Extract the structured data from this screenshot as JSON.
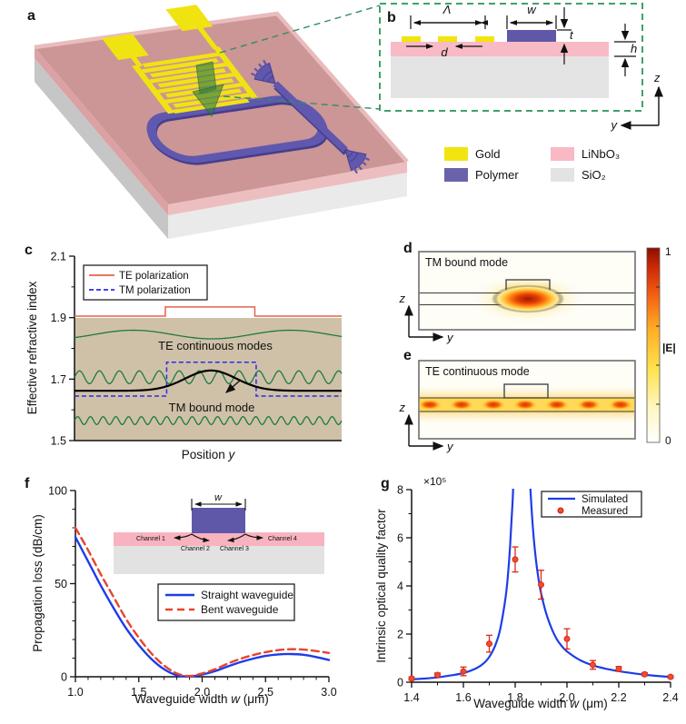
{
  "figure": {
    "panels": {
      "a": "a",
      "b": "b",
      "c": "c",
      "d": "d",
      "e": "e",
      "f": "f",
      "g": "g"
    },
    "materials": [
      {
        "name": "Gold",
        "color": "#f2e40e"
      },
      {
        "name": "Polymer",
        "color": "#6a63ab"
      },
      {
        "name": "LiNbO₃",
        "color": "#f8b9c4"
      },
      {
        "name": "SiO₂",
        "color": "#e3e3e3"
      }
    ],
    "panel_b": {
      "lambda": "Λ",
      "d": "d",
      "w": "w",
      "t": "t",
      "h": "h",
      "z": "z",
      "y": "y"
    },
    "panel_d": {
      "title": "TM bound mode",
      "z": "z",
      "y": "y"
    },
    "panel_e": {
      "title": "TE continuous mode",
      "z": "z",
      "y": "y"
    },
    "colorbar": {
      "max": "1",
      "min": "0",
      "label": "|E|"
    }
  },
  "chart_data": [
    {
      "id": "c",
      "type": "line",
      "ylabel": "Effective refractive index",
      "xlabel_main": "Position ",
      "xlabel_var": "y",
      "xlim": [
        0,
        1
      ],
      "ylim": [
        1.5,
        2.1
      ],
      "yticks": [
        "1.5",
        "1.7",
        "1.9",
        "2.1"
      ],
      "grid": false,
      "shaded_band": {
        "from": 1.9,
        "to": 1.5,
        "color": "#cfc1a8"
      },
      "legend": [
        {
          "label": "TE polarization",
          "color": "#e8604c",
          "style": "solid"
        },
        {
          "label": "TM polarization",
          "color": "#2b2bf0",
          "style": "dashed"
        }
      ],
      "series": [
        {
          "name": "TM polarization",
          "kind": "step",
          "color": "#2b2bf0",
          "width": 1.5,
          "dash": "5,3",
          "base": 1.645,
          "top": 1.755,
          "x1": 0.345,
          "x2": 0.68
        },
        {
          "name": "TE continuous mode upper",
          "kind": "sine",
          "color": "#1e7a40",
          "width": 1.3,
          "center": 1.845,
          "amp": 0.014,
          "periods": 1.7,
          "phase": -0.78
        },
        {
          "name": "TE continuous mode middle",
          "kind": "sine",
          "color": "#1e7a40",
          "width": 1.3,
          "center": 1.706,
          "amp": 0.021,
          "periods": 13.4,
          "phase": 0
        },
        {
          "name": "TE continuous mode lower",
          "kind": "sine",
          "color": "#1e7a40",
          "width": 1.3,
          "center": 1.565,
          "amp": 0.013,
          "periods": 21,
          "phase": 0
        },
        {
          "name": "TM bound mode",
          "kind": "gaussian",
          "color": "#000000",
          "width": 2.2,
          "base": 1.662,
          "peak": 1.728,
          "center": 0.51,
          "sigma": 0.095
        },
        {
          "name": "TE polarization",
          "kind": "step",
          "color": "#e8604c",
          "width": 1.5,
          "dash": null,
          "base": 1.905,
          "top": 1.935,
          "x1": 0.34,
          "x2": 0.675
        }
      ],
      "annotations": [
        {
          "text": "TE continuous modes",
          "color": "#1e7a40"
        },
        {
          "text": "TM bound mode",
          "color": "#000000"
        }
      ]
    },
    {
      "id": "f",
      "type": "line",
      "ylabel": "Propagation loss (dB/cm)",
      "xlabel_main": "Waveguide width ",
      "xlabel_var": "w",
      "xlabel_post": " (μm)",
      "xlim": [
        1.0,
        3.0
      ],
      "ylim": [
        0,
        100
      ],
      "xticks": [
        "1.0",
        "1.5",
        "2.0",
        "2.5",
        "3.0"
      ],
      "yticks": [
        "0",
        "50",
        "100"
      ],
      "grid": false,
      "legend": [
        {
          "label": "Straight waveguide",
          "color": "#1d3de8",
          "style": "solid"
        },
        {
          "label": "Bent waveguide",
          "color": "#e8432c",
          "style": "dashed"
        }
      ],
      "series": [
        {
          "name": "Straight waveguide",
          "color": "#1d3de8",
          "width": 2.4,
          "dash": null,
          "x": [
            1.0,
            1.1,
            1.2,
            1.3,
            1.4,
            1.5,
            1.6,
            1.7,
            1.8,
            1.9,
            2.0,
            2.1,
            2.2,
            2.3,
            2.4,
            2.5,
            2.6,
            2.7,
            2.8,
            2.9,
            3.0
          ],
          "y": [
            75,
            62,
            49,
            37,
            26,
            17,
            9.5,
            4,
            0.8,
            0.2,
            1.2,
            3,
            5.5,
            7.8,
            9.7,
            11.2,
            12,
            12.2,
            11.8,
            10.6,
            9
          ]
        },
        {
          "name": "Bent waveguide",
          "color": "#e8432c",
          "width": 2.4,
          "dash": "8,5",
          "x": [
            1.0,
            1.1,
            1.2,
            1.3,
            1.4,
            1.5,
            1.6,
            1.7,
            1.8,
            1.9,
            2.0,
            2.1,
            2.2,
            2.3,
            2.4,
            2.5,
            2.6,
            2.7,
            2.8,
            2.9,
            3.0
          ],
          "y": [
            80,
            68,
            55,
            43,
            31,
            21,
            12.5,
            6,
            1.8,
            0.4,
            1.8,
            4,
            7,
            9.6,
            11.6,
            13.2,
            14.3,
            14.8,
            14.6,
            13.8,
            12.8
          ]
        }
      ],
      "inset": {
        "w_label": "w",
        "channels": [
          "Channel 1",
          "Channel 2",
          "Channel 3",
          "Channel 4"
        ]
      }
    },
    {
      "id": "g",
      "type": "line+scatter",
      "ylabel": "Intrinsic optical quality factor",
      "y_scale_label": "×10⁵",
      "xlabel_main": "Waveguide width ",
      "xlabel_var": "w",
      "xlabel_post": " (μm)",
      "xlim": [
        1.4,
        2.4
      ],
      "ylim": [
        0,
        8
      ],
      "xticks": [
        "1.4",
        "1.6",
        "1.8",
        "2.0",
        "2.2",
        "2.4"
      ],
      "yticks": [
        "0",
        "2",
        "4",
        "6",
        "8"
      ],
      "grid": false,
      "legend": [
        {
          "label": "Simulated",
          "color": "#1d3de8"
        },
        {
          "label": "Measured",
          "color": "#e8392b"
        }
      ],
      "simulated": {
        "color": "#1d3de8",
        "width": 2.2,
        "x": [
          1.4,
          1.45,
          1.5,
          1.55,
          1.6,
          1.65,
          1.68,
          1.7,
          1.72,
          1.74,
          1.76,
          1.77,
          1.78,
          1.79,
          1.8,
          1.81,
          1.84,
          1.85,
          1.86,
          1.87,
          1.88,
          1.89,
          1.9,
          1.92,
          1.94,
          1.96,
          1.98,
          2.0,
          2.05,
          2.1,
          2.15,
          2.2,
          2.25,
          2.3,
          2.35,
          2.4
        ],
        "y": [
          0.12,
          0.15,
          0.2,
          0.28,
          0.38,
          0.58,
          0.8,
          1.05,
          1.45,
          2.1,
          3.3,
          4.2,
          5.6,
          7.5,
          10,
          13,
          13,
          10,
          7.8,
          6.2,
          5.1,
          4.3,
          3.7,
          2.85,
          2.25,
          1.8,
          1.5,
          1.28,
          0.92,
          0.7,
          0.56,
          0.46,
          0.38,
          0.31,
          0.26,
          0.22
        ]
      },
      "measured": {
        "edge": "#d62b18",
        "fill": "#f24c30",
        "x": [
          1.4,
          1.5,
          1.6,
          1.7,
          1.8,
          1.9,
          2.0,
          2.1,
          2.2,
          2.3,
          2.4
        ],
        "y": [
          0.15,
          0.3,
          0.45,
          1.6,
          5.1,
          4.05,
          1.8,
          0.72,
          0.55,
          0.33,
          0.22
        ],
        "yerr": [
          0.06,
          0.08,
          0.18,
          0.35,
          0.52,
          0.6,
          0.42,
          0.18,
          0.1,
          0.06,
          0.05
        ]
      }
    }
  ]
}
